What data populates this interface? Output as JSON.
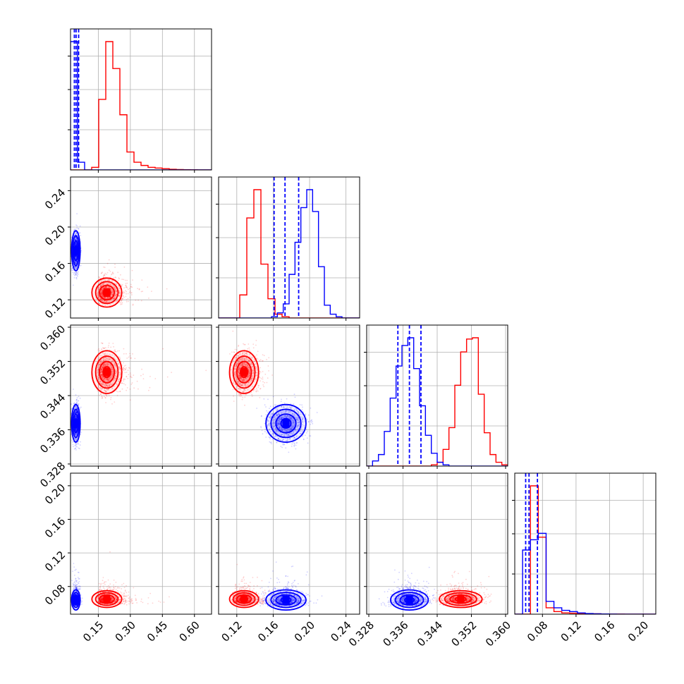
{
  "chart_data": {
    "type": "corner",
    "grid": true,
    "series_colors": [
      "#ff0000",
      "#0000ff"
    ],
    "parameters": [
      {
        "ticks": [
          0.15,
          0.3,
          0.45,
          0.6
        ],
        "tick_labels": [
          "0.15",
          "0.30",
          "0.45",
          "0.60"
        ],
        "range": [
          0.02,
          0.68
        ]
      },
      {
        "ticks": [
          0.12,
          0.16,
          0.2,
          0.24
        ],
        "tick_labels": [
          "0.12",
          "0.16",
          "0.20",
          "0.24"
        ],
        "range": [
          0.1,
          0.255
        ]
      },
      {
        "ticks": [
          0.328,
          0.336,
          0.344,
          0.352,
          0.36
        ],
        "tick_labels": [
          "0.328",
          "0.336",
          "0.344",
          "0.352",
          "0.360"
        ],
        "range": [
          0.3275,
          0.3605
        ]
      },
      {
        "ticks": [
          0.08,
          0.12,
          0.16,
          0.2
        ],
        "tick_labels": [
          "0.08",
          "0.12",
          "0.16",
          "0.20"
        ],
        "range": [
          0.047,
          0.215
        ]
      }
    ],
    "series": [
      {
        "color": "#ff0000",
        "mean": [
          0.19,
          0.128,
          0.3495,
          0.065
        ],
        "sd": [
          0.035,
          0.008,
          0.0025,
          0.005
        ],
        "quantiles": [],
        "hist": [
          [
            0,
            0,
            0,
            0.02,
            0.55,
            1.0,
            0.79,
            0.43,
            0.14,
            0.06,
            0.035,
            0.02,
            0.015,
            0.01,
            0.005,
            0.003,
            0.002,
            0.001,
            0,
            0
          ],
          [
            0,
            0,
            0,
            0.18,
            0.78,
            1.0,
            0.42,
            0.15,
            0.03,
            0.01,
            0,
            0,
            0,
            0,
            0,
            0,
            0,
            0,
            0,
            0
          ],
          [
            0,
            0,
            0,
            0,
            0,
            0,
            0,
            0,
            0,
            0,
            0,
            0.01,
            0.03,
            0.13,
            0.3,
            0.63,
            0.89,
            0.99,
            1.0,
            0.56,
            0.26,
            0.09,
            0.03,
            0.01
          ],
          [
            0,
            0,
            1.0,
            0.6,
            0.05,
            0.02,
            0.01,
            0.008,
            0.005,
            0.004,
            0.003,
            0.002,
            0.001,
            0.001,
            0,
            0,
            0,
            0
          ]
        ]
      },
      {
        "color": "#0000ff",
        "mean": [
          0.045,
          0.174,
          0.3375,
          0.064
        ],
        "sd": [
          0.01,
          0.011,
          0.0022,
          0.006
        ],
        "quantiles": [
          [
            0.038,
            0.046,
            0.058
          ],
          [
            0.161,
            0.173,
            0.188
          ],
          [
            0.3348,
            0.3375,
            0.3402
          ],
          [
            0.06,
            0.064,
            0.074
          ]
        ],
        "hist": [
          [
            1.0,
            0.06,
            0,
            0,
            0,
            0,
            0,
            0,
            0,
            0,
            0,
            0,
            0,
            0,
            0,
            0,
            0,
            0,
            0,
            0
          ],
          [
            0,
            0,
            0,
            0,
            0,
            0,
            0,
            0,
            0,
            0.01,
            0.04,
            0.11,
            0.34,
            0.59,
            0.86,
            1.0,
            0.83,
            0.4,
            0.1,
            0.03,
            0.01,
            0,
            0,
            0
          ],
          [
            0,
            0.04,
            0.09,
            0.27,
            0.53,
            0.78,
            0.94,
            1.0,
            0.76,
            0.47,
            0.24,
            0.1,
            0.03,
            0.01,
            0,
            0,
            0,
            0,
            0,
            0,
            0,
            0,
            0,
            0
          ],
          [
            0,
            0.5,
            0.58,
            0.63,
            0.1,
            0.05,
            0.03,
            0.02,
            0.01,
            0.005,
            0.003,
            0.002,
            0.001,
            0,
            0,
            0,
            0,
            0
          ]
        ]
      }
    ]
  }
}
